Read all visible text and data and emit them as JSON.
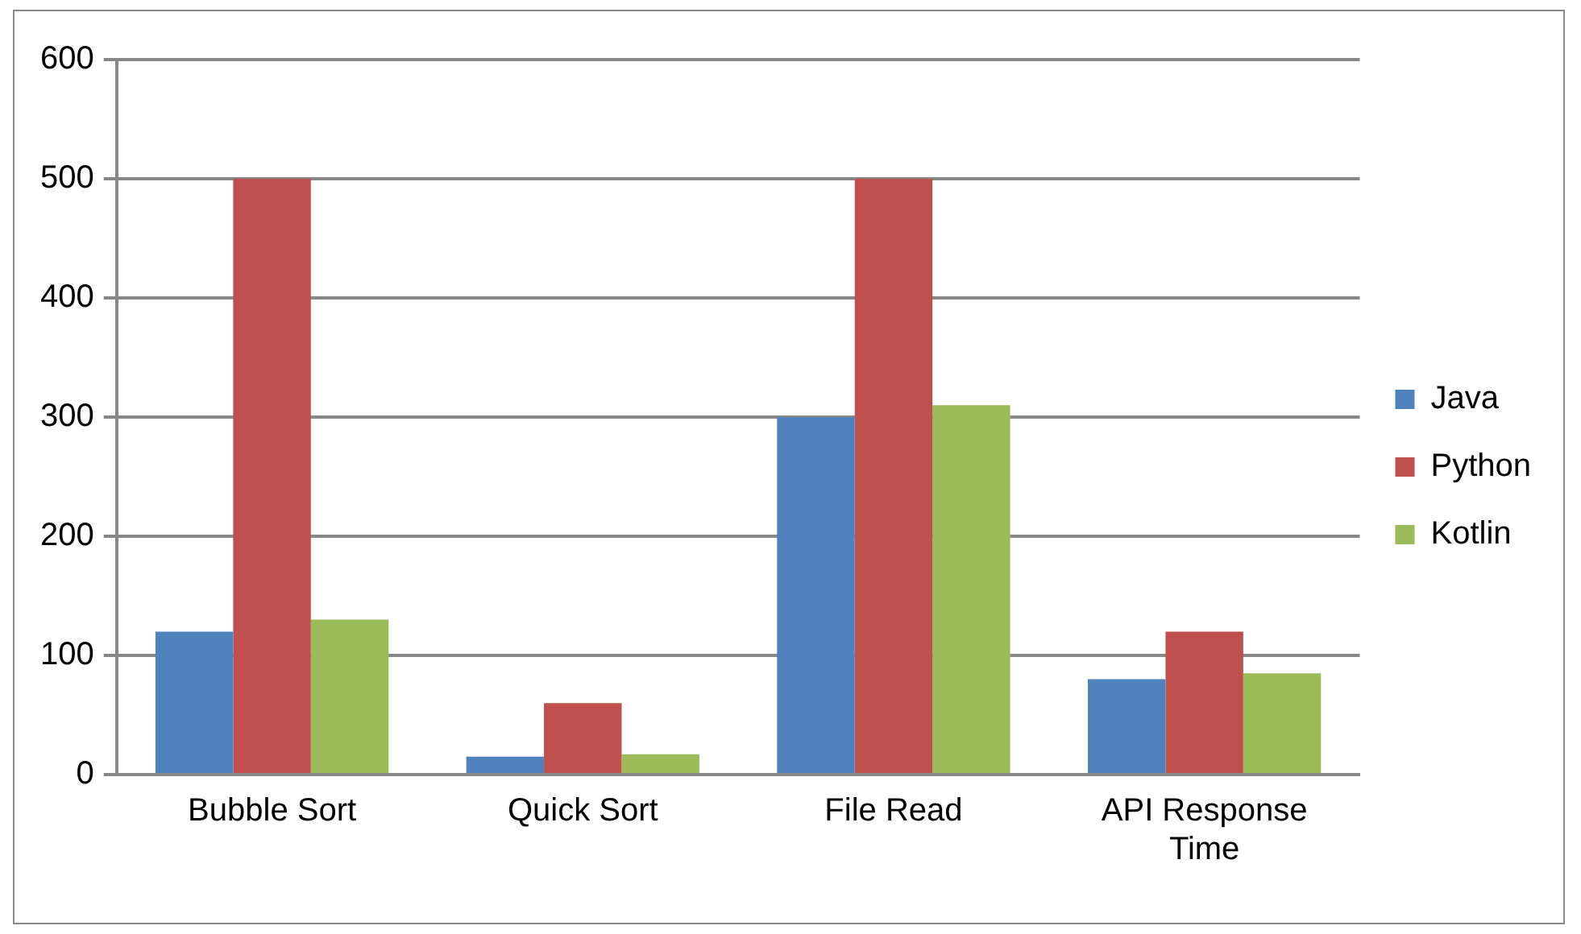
{
  "chart_data": {
    "type": "bar",
    "categories": [
      "Bubble Sort",
      "Quick Sort",
      "File Read",
      "API Response Time"
    ],
    "series": [
      {
        "name": "Java",
        "color": "#4f81bd",
        "values": [
          120,
          15,
          300,
          80
        ]
      },
      {
        "name": "Python",
        "color": "#c0504d",
        "values": [
          500,
          60,
          500,
          120
        ]
      },
      {
        "name": "Kotlin",
        "color": "#9bbb59",
        "values": [
          130,
          17,
          310,
          85
        ]
      }
    ],
    "ylim": [
      0,
      600
    ],
    "yticks": [
      0,
      100,
      200,
      300,
      400,
      500,
      600
    ],
    "grid": "y",
    "legend": "right"
  }
}
